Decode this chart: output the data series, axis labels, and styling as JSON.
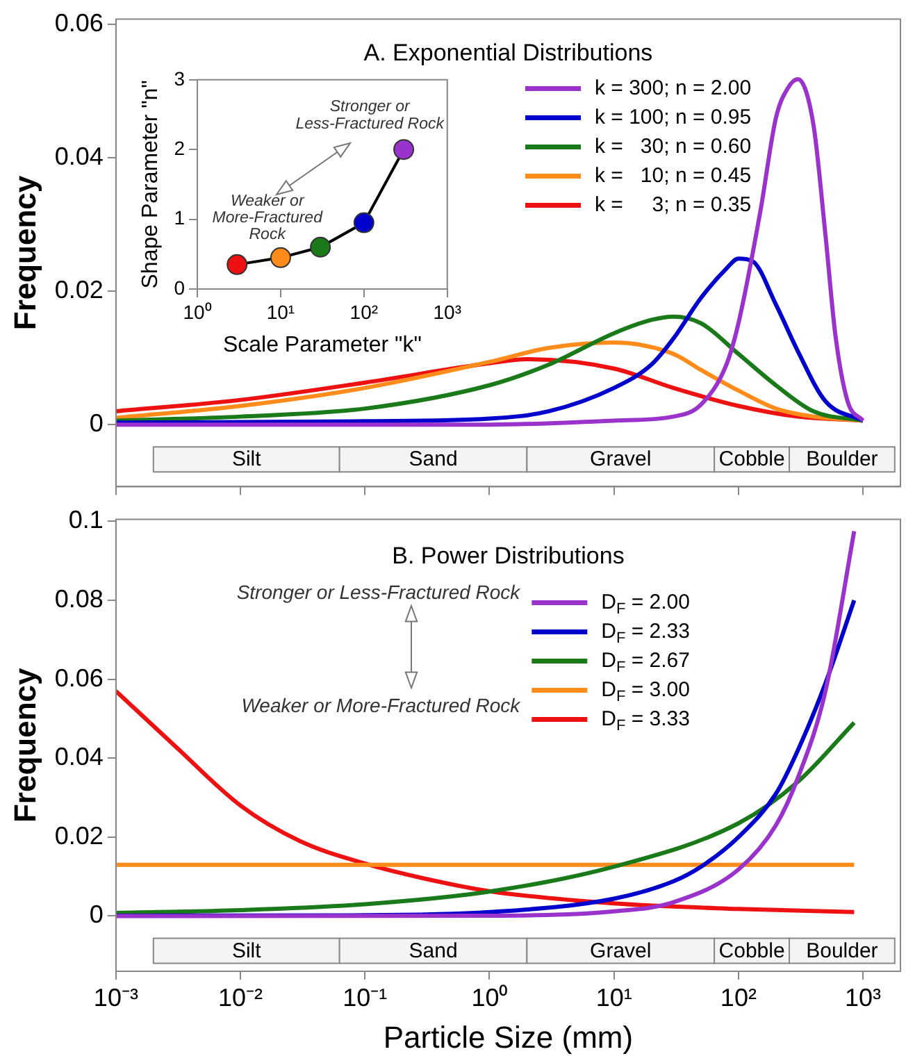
{
  "chart_data": [
    {
      "type": "line",
      "title": "A. Exponential Distributions",
      "ylabel": "Frequency",
      "log": "x",
      "legend": "top right",
      "tick_labels": "y",
      "xlim": [
        0.001,
        2000
      ],
      "ylim": [
        -0.0093,
        0.0608
      ],
      "xticks": [
        {
          "value": 0.001,
          "label": null
        },
        {
          "value": 0.01,
          "label": null
        },
        {
          "value": 0.1,
          "label": null
        },
        {
          "value": 1,
          "label": null
        },
        {
          "value": 10,
          "label": null
        },
        {
          "value": 100,
          "label": null
        },
        {
          "value": 1000,
          "label": null
        }
      ],
      "yticks": [
        0,
        0.02,
        0.04,
        0.06
      ],
      "bands": [
        {
          "axis": "x",
          "from": 0.002,
          "to": 0.0625,
          "label": "Silt"
        },
        {
          "axis": "x",
          "from": 0.0625,
          "to": 2,
          "label": "Sand"
        },
        {
          "axis": "x",
          "from": 2,
          "to": 64,
          "label": "Gravel"
        },
        {
          "axis": "x",
          "from": 64,
          "to": 256,
          "label": "Cobble"
        },
        {
          "axis": "x",
          "from": 256,
          "to": 1800,
          "label": "Boulder"
        }
      ],
      "series": [
        {
          "name": "k = 300; n = 2.00",
          "color": "#9933cc",
          "x": [
            0.001,
            1,
            10,
            30,
            50,
            80,
            100,
            150,
            200,
            250,
            300,
            400,
            500,
            600,
            750,
            1000
          ],
          "values": [
            0,
            0,
            0.0006,
            0.0012,
            0.003,
            0.009,
            0.0152,
            0.032,
            0.046,
            0.0505,
            0.0518,
            0.045,
            0.0284,
            0.0135,
            0.0036,
            0.0006
          ]
        },
        {
          "name": "k = 100; n = 0.95",
          "color": "#0000cc",
          "x": [
            0.001,
            0.1,
            1,
            3,
            10,
            20,
            30,
            50,
            80,
            100,
            130,
            200,
            300,
            500,
            1000
          ],
          "values": [
            0.0003,
            0.0005,
            0.0009,
            0.002,
            0.0055,
            0.009,
            0.0129,
            0.019,
            0.0234,
            0.0249,
            0.0245,
            0.018,
            0.011,
            0.0035,
            0.0006
          ]
        },
        {
          "name": "k =   30; n = 0.60",
          "color": "#1a7a1a",
          "x": [
            0.001,
            0.01,
            0.1,
            1,
            3,
            10,
            20,
            30,
            50,
            100,
            200,
            400,
            1000
          ],
          "values": [
            0.0006,
            0.0012,
            0.0024,
            0.0059,
            0.009,
            0.0137,
            0.0157,
            0.0162,
            0.0152,
            0.0106,
            0.0059,
            0.002,
            0.0006
          ]
        },
        {
          "name": "k =   10; n = 0.45",
          "color": "#ff8c1a",
          "x": [
            0.001,
            0.01,
            0.1,
            1,
            3,
            10,
            30,
            50,
            100,
            200,
            400,
            1000
          ],
          "values": [
            0.001,
            0.0028,
            0.0055,
            0.0094,
            0.0115,
            0.0123,
            0.0106,
            0.0082,
            0.0051,
            0.0024,
            0.0012,
            0.0006
          ]
        },
        {
          "name": "k =     3; n = 0.35",
          "color": "#ee1111",
          "x": [
            0.001,
            0.01,
            0.1,
            1,
            2,
            10,
            30,
            100,
            300,
            1000
          ],
          "values": [
            0.002,
            0.0037,
            0.0063,
            0.0092,
            0.0098,
            0.0084,
            0.0055,
            0.0028,
            0.0012,
            0.0006
          ]
        }
      ]
    },
    {
      "type": "line",
      "xlabel": "Scale Parameter \"k\"",
      "ylabel": "Shape Parameter \"n\"",
      "log": "x",
      "marker": "circle",
      "xlim": [
        1,
        1000
      ],
      "ylim": [
        0,
        3
      ],
      "xticks": [
        {
          "value": 1,
          "label": "10⁰"
        },
        {
          "value": 10,
          "label": "10¹"
        },
        {
          "value": 100,
          "label": "10²"
        },
        {
          "value": 1000,
          "label": "10³"
        }
      ],
      "yticks": [
        0,
        1,
        2,
        3
      ],
      "annotations": [
        "Stronger or Less-Fractured Rock",
        "Weaker or More-Fractured Rock"
      ],
      "x": [
        3,
        10,
        30,
        100,
        300
      ],
      "series": [
        {
          "color": "#000000",
          "colors": [
            "#ee1111",
            "#ff8c1a",
            "#1a7a1a",
            "#0000cc",
            "#9933cc"
          ],
          "values": [
            0.35,
            0.45,
            0.6,
            0.95,
            2.0
          ]
        }
      ]
    },
    {
      "type": "line",
      "title": "B. Power Distributions",
      "xlabel": "Particle Size (mm)",
      "ylabel": "Frequency",
      "log": "x",
      "legend": "top",
      "xlim": [
        0.001,
        2000
      ],
      "ylim": [
        -0.014,
        0.1005
      ],
      "xticks": [
        {
          "value": 0.001,
          "label": "10⁻³"
        },
        {
          "value": 0.01,
          "label": "10⁻²"
        },
        {
          "value": 0.1,
          "label": "10⁻¹"
        },
        {
          "value": 1,
          "label": "10⁰"
        },
        {
          "value": 10,
          "label": "10¹"
        },
        {
          "value": 100,
          "label": "10²"
        },
        {
          "value": 1000,
          "label": "10³"
        }
      ],
      "yticks": [
        0,
        0.02,
        0.04,
        0.06,
        0.08,
        0.1
      ],
      "annotations": [
        "Stronger or Less-Fractured Rock",
        "Weaker or More-Fractured Rock"
      ],
      "bands": [
        {
          "axis": "x",
          "from": 0.002,
          "to": 0.0625,
          "label": "Silt"
        },
        {
          "axis": "x",
          "from": 0.0625,
          "to": 2,
          "label": "Sand"
        },
        {
          "axis": "x",
          "from": 2,
          "to": 64,
          "label": "Gravel"
        },
        {
          "axis": "x",
          "from": 64,
          "to": 256,
          "label": "Cobble"
        },
        {
          "axis": "x",
          "from": 256,
          "to": 1800,
          "label": "Boulder"
        }
      ],
      "series": [
        {
          "name": "D$_{F}$ = 2.00",
          "color": "#9933cc",
          "x": [
            0.001,
            1,
            10,
            30,
            100,
            200,
            300,
            500,
            850
          ],
          "values": [
            0,
            0.0001,
            0.0012,
            0.0035,
            0.0118,
            0.023,
            0.035,
            0.057,
            0.0975
          ]
        },
        {
          "name": "D$_{F}$ = 2.33",
          "color": "#0000cc",
          "x": [
            0.001,
            0.1,
            1,
            10,
            30,
            50,
            100,
            200,
            300,
            500,
            850
          ],
          "values": [
            0.0001,
            0.0002,
            0.001,
            0.0044,
            0.0088,
            0.0125,
            0.02,
            0.031,
            0.042,
            0.059,
            0.08
          ]
        },
        {
          "name": "D$_{F}$ = 2.67",
          "color": "#1a7a1a",
          "x": [
            0.001,
            0.01,
            0.1,
            1,
            10,
            100,
            300,
            850
          ],
          "values": [
            0.0008,
            0.0015,
            0.003,
            0.0062,
            0.0125,
            0.0235,
            0.034,
            0.049
          ]
        },
        {
          "name": "D$_{F}$ = 3.00",
          "color": "#ff8c1a",
          "x": [
            0.001,
            850
          ],
          "values": [
            0.013,
            0.013
          ]
        },
        {
          "name": "D$_{F}$ = 3.33",
          "color": "#ee1111",
          "x": [
            0.001,
            0.003,
            0.01,
            0.03,
            0.1,
            0.3,
            1,
            10,
            100,
            850
          ],
          "values": [
            0.057,
            0.043,
            0.028,
            0.019,
            0.0133,
            0.0095,
            0.0063,
            0.0032,
            0.0018,
            0.001
          ]
        }
      ]
    }
  ]
}
